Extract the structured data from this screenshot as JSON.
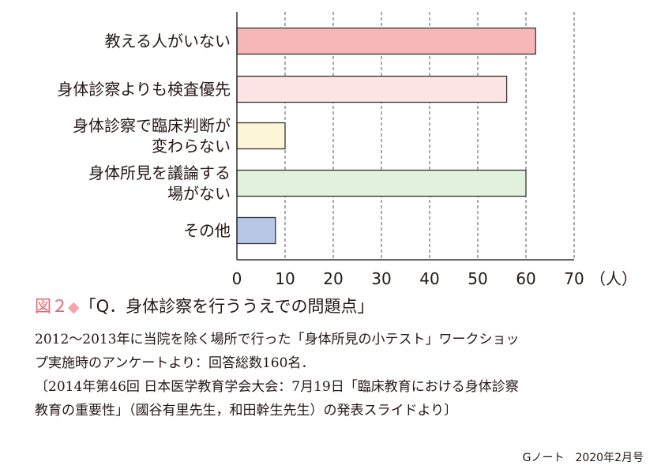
{
  "chart_data": {
    "type": "bar",
    "orientation": "horizontal",
    "categories": [
      "教える人がいない",
      "身体診察よりも検査優先",
      "身体診察で臨床判断が\n変わらない",
      "身体所見を議論する\n場がない",
      "その他"
    ],
    "values": [
      62,
      56,
      10,
      60,
      8
    ],
    "colors": [
      "#f7b7b8",
      "#fde5e4",
      "#fdf5d8",
      "#e2f1dc",
      "#b9c7e7"
    ],
    "xlim": [
      0,
      70
    ],
    "xticks": [
      "0",
      "10",
      "20",
      "30",
      "40",
      "50",
      "60",
      "70"
    ],
    "unit": "（人）",
    "grid": "dashed vertical"
  },
  "figure": {
    "label": "図２",
    "diamond": "◆",
    "title": "「Q．身体診察を行ううえでの問題点」"
  },
  "caption": {
    "line1": "2012～2013年に当院を除く場所で行った「身体所見の小テスト」ワークショッ",
    "line2": "プ実施時のアンケートより：回答総数160名．",
    "line3": "〔2014年第46回 日本医学教育学会大会：7月19日「臨床教育における身体診察",
    "line4": "教育の重要性」（國谷有里先生，和田幹生先生）の発表スライドより〕"
  },
  "footer": "Gノート　2020年2月号"
}
